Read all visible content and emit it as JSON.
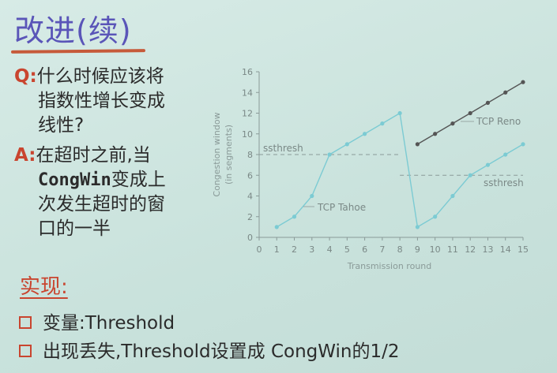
{
  "slide": {
    "title": "改进(续)",
    "q_mark": "Q:",
    "q_lines": [
      "什么时候应该将",
      "指数性增长变成",
      "线性?"
    ],
    "a_mark": "A:",
    "a_line1": "在超时之前,当",
    "a_line2_code": "CongWin",
    "a_line2_rest": "变成上",
    "a_line3": "次发生超时的窗",
    "a_line4": "口的一半",
    "impl_heading": "实现:",
    "bullets": [
      "变量:Threshold",
      "出现丢失,Threshold设置成 CongWin的1/2"
    ]
  },
  "chart_data": {
    "type": "line",
    "xlabel": "Transmission round",
    "ylabel_line1": "Congestion window",
    "ylabel_line2": "(in segments)",
    "xlim": [
      0,
      15
    ],
    "ylim": [
      0,
      16
    ],
    "x_ticks": [
      0,
      1,
      2,
      3,
      4,
      5,
      6,
      7,
      8,
      9,
      10,
      11,
      12,
      13,
      14,
      15
    ],
    "y_ticks": [
      0,
      2,
      4,
      6,
      8,
      10,
      12,
      14,
      16
    ],
    "series": [
      {
        "name": "TCP Tahoe",
        "color": "#7ccbd3",
        "points": [
          [
            1,
            1
          ],
          [
            2,
            2
          ],
          [
            3,
            4
          ],
          [
            4,
            8
          ],
          [
            5,
            9
          ],
          [
            6,
            10
          ],
          [
            7,
            11
          ],
          [
            8,
            12
          ],
          [
            9,
            1
          ],
          [
            10,
            2
          ],
          [
            11,
            4
          ],
          [
            12,
            6
          ],
          [
            13,
            7
          ],
          [
            14,
            8
          ],
          [
            15,
            9
          ]
        ]
      },
      {
        "name": "TCP Reno",
        "color": "#555555",
        "points": [
          [
            9,
            9
          ],
          [
            10,
            10
          ],
          [
            11,
            11
          ],
          [
            12,
            12
          ],
          [
            13,
            13
          ],
          [
            14,
            14
          ],
          [
            15,
            15
          ]
        ]
      }
    ],
    "thresholds": [
      {
        "label": "ssthresh",
        "y": 8,
        "x_range": [
          0,
          8
        ]
      },
      {
        "label": "ssthresh",
        "y": 6,
        "x_range": [
          8,
          15
        ]
      }
    ],
    "grid": false
  },
  "colors": {
    "title": "#5a55b8",
    "accent_red": "#c9452f",
    "axis": "#8a9a98",
    "tahoe": "#7ccbd3",
    "reno": "#555555"
  }
}
